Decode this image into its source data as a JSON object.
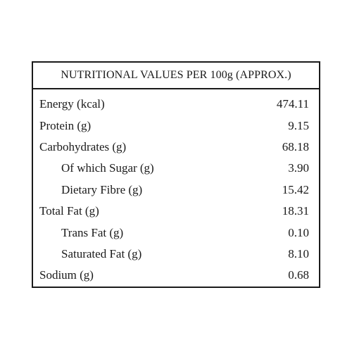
{
  "table": {
    "title": "NUTRITIONAL VALUES PER 100g (APPROX.)",
    "rows": [
      {
        "label": "Energy (kcal)",
        "value": "474.11",
        "indent": false
      },
      {
        "label": "Protein (g)",
        "value": "9.15",
        "indent": false
      },
      {
        "label": "Carbohydrates (g)",
        "value": "68.18",
        "indent": false
      },
      {
        "label": "Of which Sugar (g)",
        "value": "3.90",
        "indent": true
      },
      {
        "label": "Dietary Fibre (g)",
        "value": "15.42",
        "indent": true
      },
      {
        "label": "Total Fat (g)",
        "value": "18.31",
        "indent": false
      },
      {
        "label": "Trans Fat (g)",
        "value": "0.10",
        "indent": true
      },
      {
        "label": "Saturated Fat (g)",
        "value": "8.10",
        "indent": true
      },
      {
        "label": "Sodium (g)",
        "value": "0.68",
        "indent": false
      }
    ]
  }
}
